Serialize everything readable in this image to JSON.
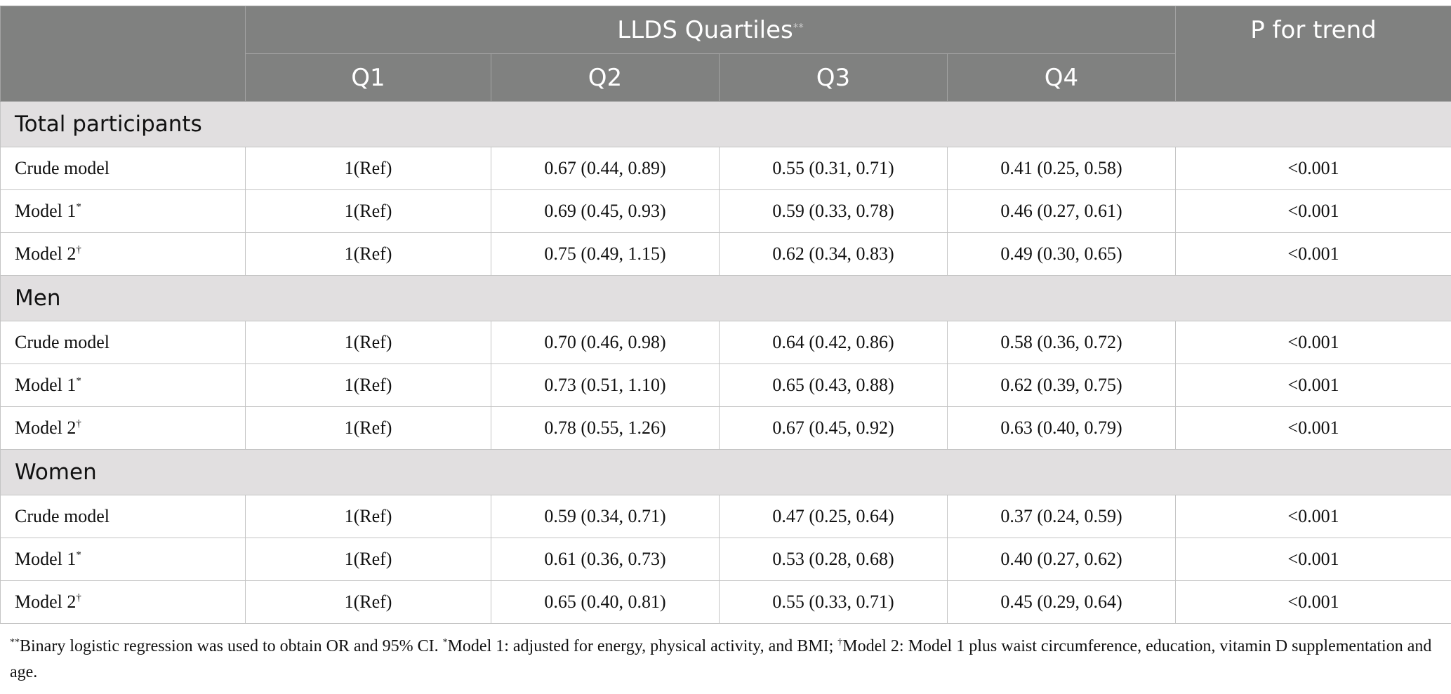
{
  "header": {
    "group_title": "LLDS Quartiles",
    "group_title_mark": "**",
    "p_trend": "P for trend",
    "quartiles": [
      "Q1",
      "Q2",
      "Q3",
      "Q4"
    ]
  },
  "groups": [
    {
      "title": "Total participants",
      "rows": [
        {
          "label": "Crude model",
          "mark": "",
          "q1": "1(Ref)",
          "q2": "0.67 (0.44, 0.89)",
          "q3": "0.55 (0.31, 0.71)",
          "q4": "0.41 (0.25, 0.58)",
          "p": "<0.001"
        },
        {
          "label": "Model 1",
          "mark": "*",
          "q1": "1(Ref)",
          "q2": "0.69 (0.45, 0.93)",
          "q3": "0.59 (0.33, 0.78)",
          "q4": "0.46 (0.27, 0.61)",
          "p": "<0.001"
        },
        {
          "label": "Model 2",
          "mark": "†",
          "q1": "1(Ref)",
          "q2": "0.75 (0.49, 1.15)",
          "q3": "0.62 (0.34, 0.83)",
          "q4": "0.49 (0.30, 0.65)",
          "p": "<0.001"
        }
      ]
    },
    {
      "title": "Men",
      "rows": [
        {
          "label": "Crude model",
          "mark": "",
          "q1": "1(Ref)",
          "q2": "0.70 (0.46, 0.98)",
          "q3": "0.64 (0.42, 0.86)",
          "q4": "0.58 (0.36, 0.72)",
          "p": "<0.001"
        },
        {
          "label": "Model 1",
          "mark": "*",
          "q1": "1(Ref)",
          "q2": "0.73 (0.51, 1.10)",
          "q3": "0.65 (0.43, 0.88)",
          "q4": "0.62 (0.39, 0.75)",
          "p": "<0.001"
        },
        {
          "label": "Model 2",
          "mark": "†",
          "q1": "1(Ref)",
          "q2": "0.78 (0.55, 1.26)",
          "q3": "0.67 (0.45, 0.92)",
          "q4": "0.63 (0.40, 0.79)",
          "p": "<0.001"
        }
      ]
    },
    {
      "title": "Women",
      "rows": [
        {
          "label": "Crude model",
          "mark": "",
          "q1": "1(Ref)",
          "q2": "0.59 (0.34, 0.71)",
          "q3": "0.47 (0.25, 0.64)",
          "q4": "0.37 (0.24, 0.59)",
          "p": "<0.001"
        },
        {
          "label": "Model 1",
          "mark": "*",
          "q1": "1(Ref)",
          "q2": "0.61 (0.36, 0.73)",
          "q3": "0.53 (0.28, 0.68)",
          "q4": "0.40 (0.27, 0.62)",
          "p": "<0.001"
        },
        {
          "label": "Model 2",
          "mark": "†",
          "q1": "1(Ref)",
          "q2": "0.65 (0.40, 0.81)",
          "q3": "0.55 (0.33, 0.71)",
          "q4": "0.45 (0.29, 0.64)",
          "p": "<0.001"
        }
      ]
    }
  ],
  "footnote": {
    "mark1": "**",
    "text1": "Binary logistic regression was used to obtain OR and 95% CI. ",
    "mark2": "*",
    "text2": "Model 1: adjusted for energy, physical activity, and BMI; ",
    "mark3": "†",
    "text3": "Model 2: Model 1 plus waist circumference, education, vitamin D supplementation and age."
  },
  "colors": {
    "header_bg": "#808180",
    "group_bg": "#e1dfe0",
    "border": "#c4c4c4"
  }
}
